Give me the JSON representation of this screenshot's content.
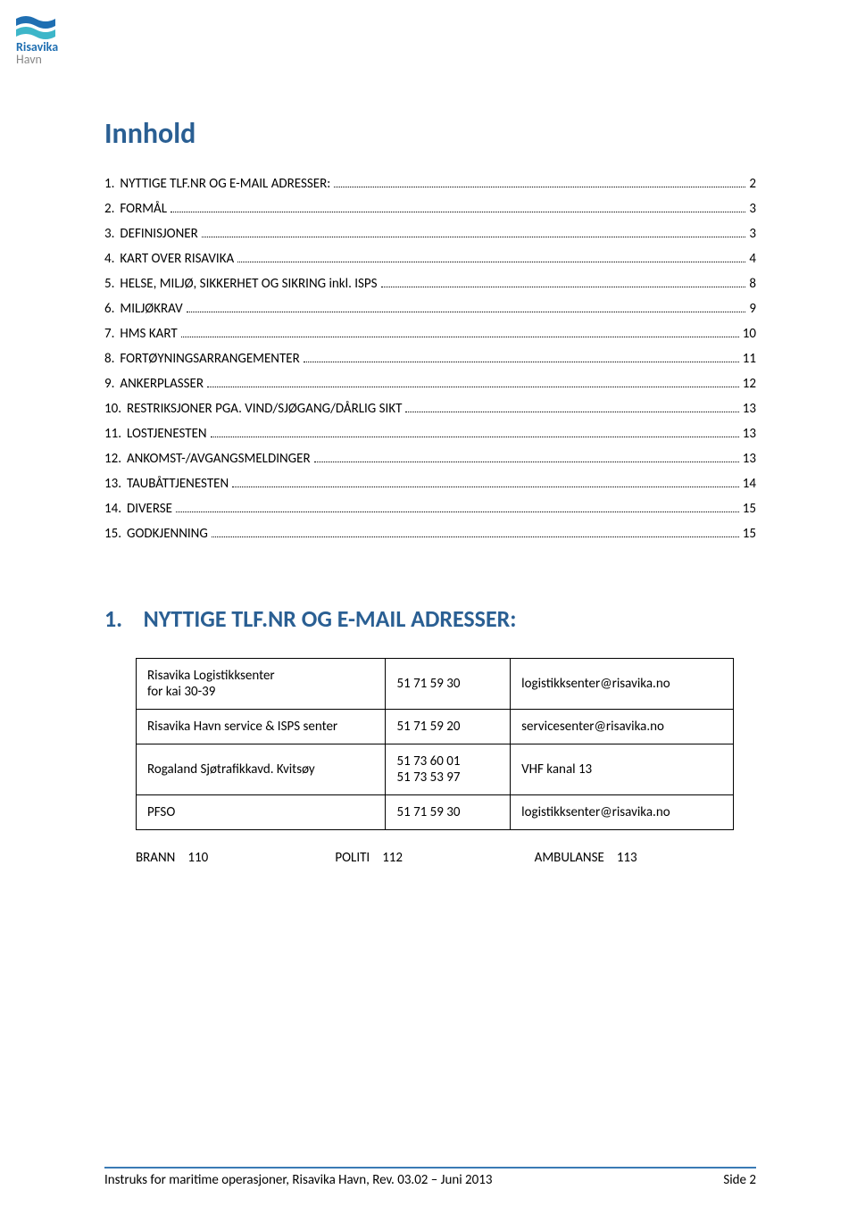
{
  "logo": {
    "line1": "Risavika",
    "line2": "Havn",
    "flag_color_blue": "#1f6fb2",
    "flag_color_teal": "#3db6c9"
  },
  "title": {
    "text": "Innhold",
    "fontsize": 32,
    "color": "#2a5f93"
  },
  "toc": [
    {
      "num": "1.",
      "label": "NYTTIGE TLF.NR OG E-MAIL ADRESSER:",
      "page": "2"
    },
    {
      "num": "2.",
      "label": "FORMÅL",
      "page": "3"
    },
    {
      "num": "3.",
      "label": "DEFINISJONER",
      "page": "3"
    },
    {
      "num": "4.",
      "label": "KART OVER RISAVIKA",
      "page": "4"
    },
    {
      "num": "5.",
      "label": "HELSE, MILJØ, SIKKERHET OG SIKRING inkl. ISPS",
      "page": "8"
    },
    {
      "num": "6.",
      "label": "MILJØKRAV",
      "page": "9"
    },
    {
      "num": "7.",
      "label": "HMS KART",
      "page": "10"
    },
    {
      "num": "8.",
      "label": "FORTØYNINGSARRANGEMENTER",
      "page": "11"
    },
    {
      "num": "9.",
      "label": "ANKERPLASSER",
      "page": "12"
    },
    {
      "num": "10.",
      "label": "RESTRIKSJONER PGA. VIND/SJØGANG/DÅRLIG SIKT",
      "page": "13"
    },
    {
      "num": "11.",
      "label": "LOSTJENESTEN",
      "page": "13"
    },
    {
      "num": "12.",
      "label": "ANKOMST-/AVGANGSMELDINGER",
      "page": "13"
    },
    {
      "num": "13.",
      "label": "TAUBÅTTJENESTEN",
      "page": "14"
    },
    {
      "num": "14.",
      "label": "DIVERSE",
      "page": "15"
    },
    {
      "num": "15.",
      "label": "GODKJENNING",
      "page": "15"
    }
  ],
  "section1": {
    "num": "1.",
    "title": "NYTTIGE TLF.NR OG E-MAIL ADRESSER:",
    "fontsize": 26,
    "color": "#2a5f93"
  },
  "contacts": [
    {
      "name": "Risavika Logistikksenter\nfor kai 30-39",
      "phone": "51 71 59 30",
      "email": "logistikksenter@risavika.no"
    },
    {
      "name": "Risavika Havn service & ISPS senter",
      "phone": "51 71 59 20",
      "email": "servicesenter@risavika.no"
    },
    {
      "name": "Rogaland Sjøtrafikkavd. Kvitsøy",
      "phone": "51 73 60 01\n51 73 53 97",
      "email": "VHF kanal 13"
    },
    {
      "name": "PFSO",
      "phone": "51 71 59 30",
      "email": "logistikksenter@risavika.no"
    }
  ],
  "emergency": [
    {
      "label": "BRANN",
      "num": "110"
    },
    {
      "label": "POLITI",
      "num": "112"
    },
    {
      "label": "AMBULANSE",
      "num": "113"
    }
  ],
  "footer": {
    "left": "Instruks for maritime operasjoner, Risavika Havn, Rev. 03.02 – Juni 2013",
    "right": "Side 2",
    "border_color": "#3a7ab5"
  }
}
